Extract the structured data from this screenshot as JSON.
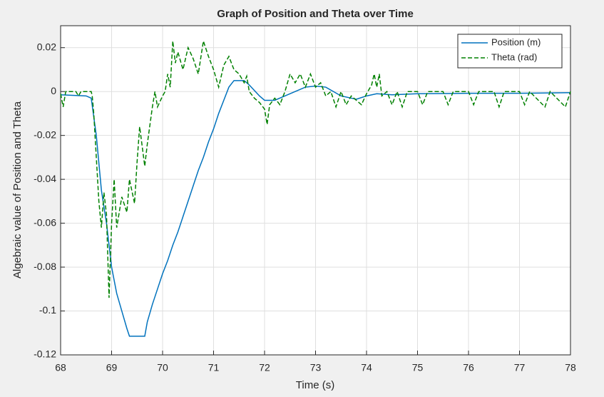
{
  "chart_data": {
    "type": "line",
    "title": "Graph of Position and Theta over Time",
    "xlabel": "Time (s)",
    "ylabel": "Algebraic value of Position and Theta",
    "xlim": [
      68,
      78
    ],
    "ylim": [
      -0.12,
      0.03
    ],
    "xticks": [
      68,
      69,
      70,
      71,
      72,
      73,
      74,
      75,
      76,
      77,
      78
    ],
    "yticks": [
      -0.12,
      -0.1,
      -0.08,
      -0.06,
      -0.04,
      -0.02,
      0,
      0.02
    ],
    "grid": true,
    "legend": "northeast",
    "series": [
      {
        "name": "Position (m)",
        "color": "#0072bd",
        "dash": "solid",
        "x": [
          68,
          68.5,
          68.6,
          68.7,
          68.8,
          68.9,
          69.0,
          69.1,
          69.2,
          69.3,
          69.35,
          69.65,
          69.7,
          69.8,
          69.9,
          70.0,
          70.1,
          70.2,
          70.3,
          70.4,
          70.5,
          70.6,
          70.7,
          70.8,
          70.9,
          71.0,
          71.1,
          71.2,
          71.3,
          71.4,
          71.6,
          71.7,
          71.9,
          72.0,
          72.2,
          72.4,
          72.6,
          72.8,
          73.0,
          73.2,
          73.5,
          73.8,
          74.0,
          74.2,
          74.5,
          75,
          76,
          77,
          78
        ],
        "values": [
          -0.0015,
          -0.002,
          -0.003,
          -0.02,
          -0.045,
          -0.06,
          -0.08,
          -0.092,
          -0.1,
          -0.108,
          -0.1115,
          -0.1115,
          -0.105,
          -0.097,
          -0.09,
          -0.083,
          -0.077,
          -0.07,
          -0.064,
          -0.057,
          -0.05,
          -0.043,
          -0.036,
          -0.03,
          -0.023,
          -0.017,
          -0.01,
          -0.004,
          0.002,
          0.005,
          0.005,
          0.003,
          -0.002,
          -0.004,
          -0.004,
          -0.002,
          0.0,
          0.002,
          0.0025,
          0.002,
          -0.002,
          -0.0035,
          -0.002,
          -0.001,
          -0.0015,
          -0.001,
          -0.0008,
          -0.0008,
          -0.0005
        ]
      },
      {
        "name": "Theta (rad)",
        "color": "#008000",
        "dash": "dashed",
        "x": [
          68.0,
          68.05,
          68.1,
          68.3,
          68.35,
          68.4,
          68.6,
          68.62,
          68.65,
          68.7,
          68.75,
          68.8,
          68.85,
          68.9,
          68.95,
          69.0,
          69.05,
          69.1,
          69.2,
          69.3,
          69.35,
          69.45,
          69.5,
          69.55,
          69.65,
          69.7,
          69.8,
          69.85,
          69.9,
          70.0,
          70.05,
          70.1,
          70.15,
          70.2,
          70.25,
          70.3,
          70.4,
          70.5,
          70.6,
          70.7,
          70.8,
          70.9,
          71.0,
          71.1,
          71.2,
          71.3,
          71.4,
          71.5,
          71.6,
          71.65,
          71.7,
          71.8,
          71.9,
          72.0,
          72.05,
          72.1,
          72.2,
          72.3,
          72.4,
          72.5,
          72.6,
          72.7,
          72.8,
          72.9,
          73.0,
          73.1,
          73.2,
          73.3,
          73.4,
          73.5,
          73.6,
          73.7,
          73.8,
          73.9,
          74.0,
          74.1,
          74.15,
          74.2,
          74.25,
          74.3,
          74.4,
          74.5,
          74.6,
          74.7,
          74.8,
          75.0,
          75.1,
          75.2,
          75.5,
          75.6,
          75.7,
          76.0,
          76.1,
          76.2,
          76.5,
          76.6,
          76.7,
          77.0,
          77.1,
          77.2,
          77.5,
          77.6,
          77.9,
          78.0
        ],
        "values": [
          -0.001,
          -0.007,
          0,
          0,
          -0.002,
          0,
          0,
          -0.002,
          -0.01,
          -0.03,
          -0.05,
          -0.062,
          -0.046,
          -0.056,
          -0.094,
          -0.06,
          -0.04,
          -0.062,
          -0.048,
          -0.055,
          -0.04,
          -0.051,
          -0.032,
          -0.016,
          -0.034,
          -0.024,
          -0.007,
          0,
          -0.007,
          -0.002,
          0,
          0.008,
          0.002,
          0.023,
          0.013,
          0.018,
          0.01,
          0.02,
          0.015,
          0.008,
          0.023,
          0.016,
          0.01,
          0.002,
          0.012,
          0.016,
          0.01,
          0.008,
          0.004,
          0.007,
          0,
          -0.003,
          -0.005,
          -0.008,
          -0.015,
          -0.006,
          -0.003,
          -0.006,
          0,
          0.008,
          0.004,
          0.008,
          0.002,
          0.008,
          0.002,
          0.004,
          -0.002,
          0,
          -0.007,
          0,
          -0.006,
          -0.002,
          -0.004,
          -0.006,
          -0.001,
          0.003,
          0.008,
          0.002,
          0.008,
          -0.002,
          0,
          -0.006,
          0,
          -0.007,
          0,
          0,
          -0.006,
          0,
          0,
          -0.006,
          0,
          0,
          -0.006,
          0,
          0,
          -0.007,
          0,
          0,
          -0.006,
          0,
          -0.007,
          0,
          -0.007,
          0
        ]
      }
    ]
  }
}
